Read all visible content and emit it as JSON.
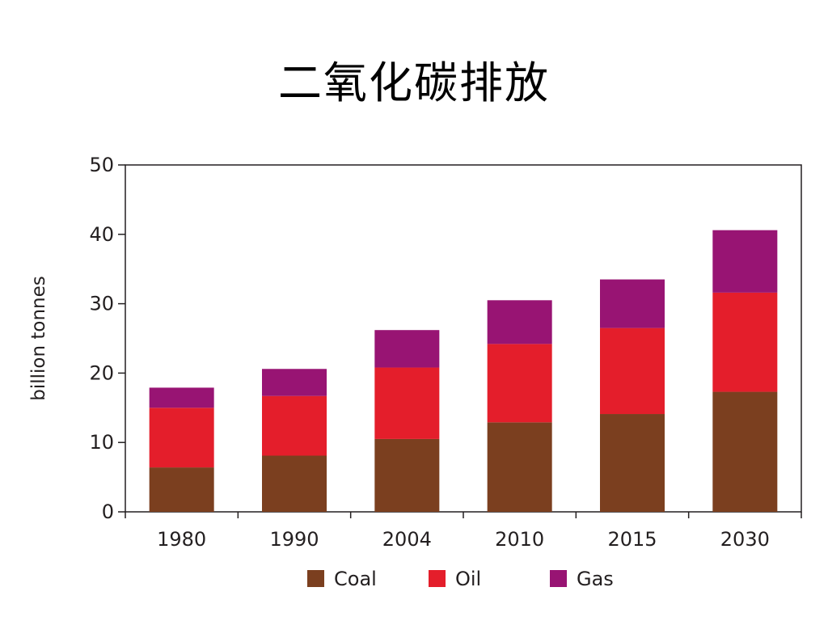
{
  "title": "二氧化碳排放",
  "chart_data": {
    "type": "bar",
    "stacked": true,
    "categories": [
      "1980",
      "1990",
      "2004",
      "2010",
      "2015",
      "2030"
    ],
    "series": [
      {
        "name": "Coal",
        "color": "#7b3f1f",
        "values": [
          6.4,
          8.1,
          10.5,
          12.9,
          14.1,
          17.3
        ]
      },
      {
        "name": "Oil",
        "color": "#e41e2b",
        "values": [
          8.6,
          8.6,
          10.3,
          11.3,
          12.4,
          14.3
        ]
      },
      {
        "name": "Gas",
        "color": "#981473",
        "values": [
          2.9,
          3.9,
          5.4,
          6.3,
          7.0,
          9.0
        ]
      }
    ],
    "ylabel": "billion tonnes",
    "xlabel": "",
    "ylim": [
      0,
      50
    ],
    "yticks": [
      "0",
      "10",
      "20",
      "30",
      "40",
      "50"
    ],
    "grid": false,
    "legend": "bottom"
  }
}
